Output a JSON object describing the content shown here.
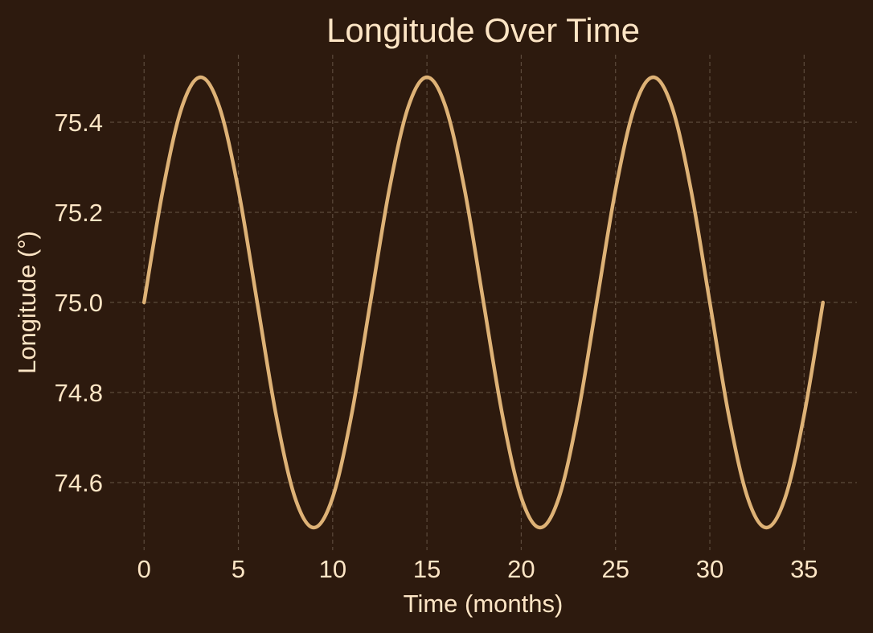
{
  "chart_data": {
    "type": "line",
    "title": "Longitude Over Time",
    "xlabel": "Time (months)",
    "ylabel": "Longitude (°)",
    "xlim": [
      -1.8,
      37.8
    ],
    "ylim": [
      74.45,
      75.55
    ],
    "xticks": [
      0,
      5,
      10,
      15,
      20,
      25,
      30,
      35
    ],
    "yticks": [
      74.6,
      74.8,
      75.0,
      75.2,
      75.4
    ],
    "grid": true,
    "legend": "none",
    "series": [
      {
        "color": "#deb276",
        "x": [
          0,
          1,
          2,
          3,
          4,
          5,
          6,
          7,
          8,
          9,
          10,
          11,
          12,
          13,
          14,
          15,
          16,
          17,
          18,
          19,
          20,
          21,
          22,
          23,
          24,
          25,
          26,
          27,
          28,
          29,
          30,
          31,
          32,
          33,
          34,
          35,
          36
        ],
        "y": [
          75.0,
          75.25,
          75.433,
          75.5,
          75.433,
          75.25,
          75.0,
          74.75,
          74.567,
          74.5,
          74.567,
          74.75,
          75.0,
          75.25,
          75.433,
          75.5,
          75.433,
          75.25,
          75.0,
          74.75,
          74.567,
          74.5,
          74.567,
          74.75,
          75.0,
          75.25,
          75.433,
          75.5,
          75.433,
          75.25,
          75.0,
          74.75,
          74.567,
          74.5,
          74.567,
          74.75,
          75.0
        ]
      }
    ]
  },
  "colors": {
    "background": "#2d1a0e",
    "text": "#fde5c5",
    "grid": "#5c4a3c"
  }
}
